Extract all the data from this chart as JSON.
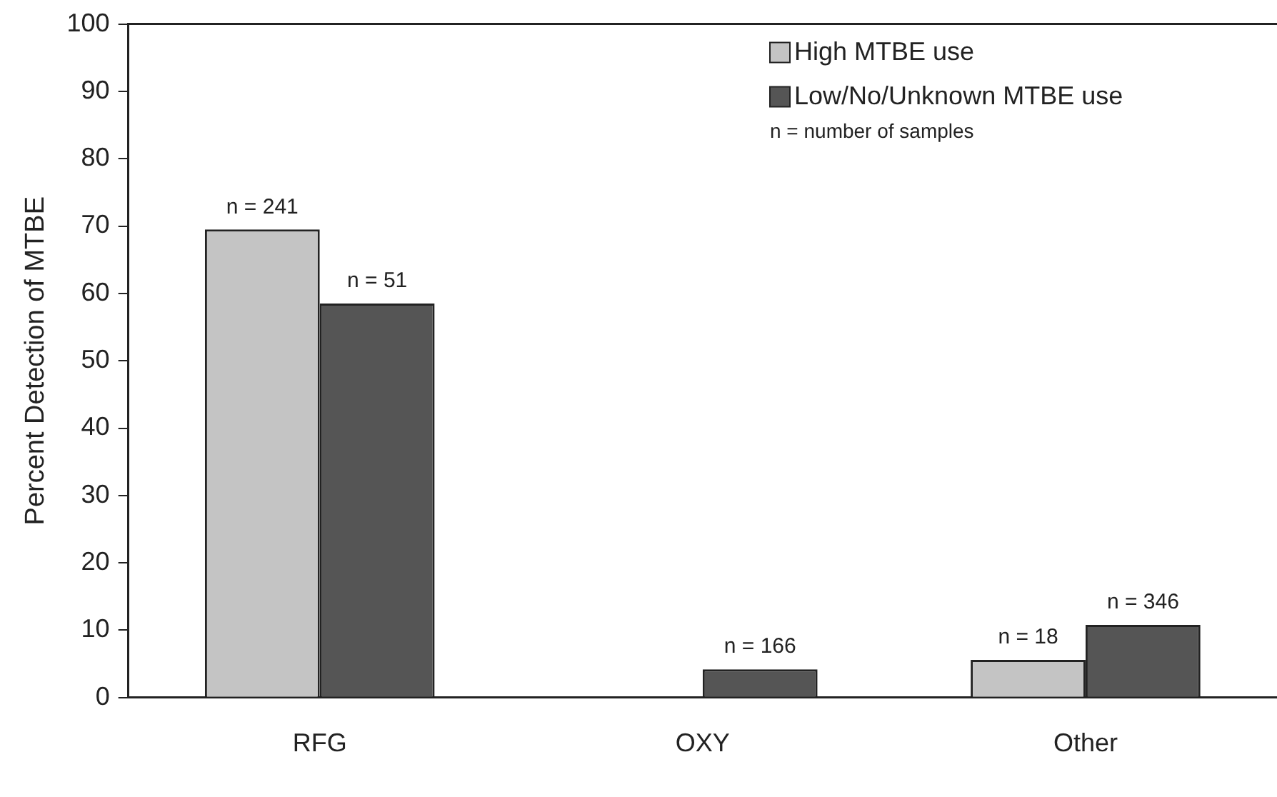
{
  "chart_data": {
    "type": "bar",
    "ylabel": "Percent Detection of MTBE",
    "categories": [
      "RFG",
      "OXY",
      "Other"
    ],
    "series": [
      {
        "name": "High MTBE use",
        "color": "#c4c4c4",
        "values": [
          69.5,
          null,
          5.6
        ]
      },
      {
        "name": "Low/No/Unknown MTBE use",
        "color": "#555555",
        "values": [
          58.5,
          4.2,
          10.8
        ]
      }
    ],
    "ylim": [
      0,
      100
    ],
    "yticks": [
      0,
      10,
      20,
      30,
      40,
      50,
      60,
      70,
      80,
      90,
      100
    ],
    "grid": false,
    "legend": "top right",
    "annotations": [
      "n = number of samples",
      {
        "text": "n = 241",
        "x": "RFG",
        "y": 69.5
      },
      {
        "text": "n = 51",
        "x": "RFG",
        "y": 58.5
      },
      {
        "text": "n = 166",
        "x": "OXY",
        "y": 4.2
      },
      {
        "text": "n = 18",
        "x": "Other",
        "y": 5.6
      },
      {
        "text": "n = 346",
        "x": "Other",
        "y": 10.8
      }
    ]
  }
}
